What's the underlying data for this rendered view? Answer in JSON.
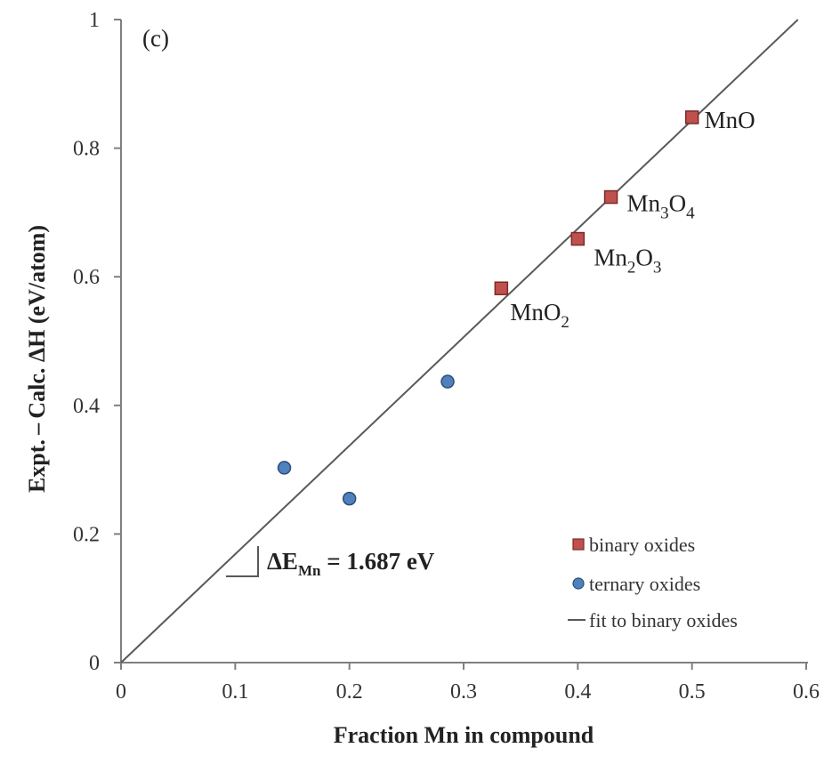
{
  "chart_data": {
    "type": "scatter",
    "panel_label": "(c)",
    "xlabel": "Fraction Mn in compound",
    "ylabel": "Expt. – Calc. ΔH (eV/atom)",
    "xlim": [
      0,
      0.6
    ],
    "ylim": [
      0,
      1
    ],
    "x_ticks": [
      0,
      0.1,
      0.2,
      0.3,
      0.4,
      0.5,
      0.6
    ],
    "x_tick_labels": [
      "0",
      "0.1",
      "0.2",
      "0.3",
      "0.4",
      "0.5",
      "0.6"
    ],
    "y_ticks": [
      0,
      0.2,
      0.4,
      0.6,
      0.8,
      1
    ],
    "y_tick_labels": [
      "0",
      "0.2",
      "0.4",
      "0.6",
      "0.8",
      "1"
    ],
    "grid": false,
    "legend_position": "bottom-right",
    "series": [
      {
        "name": "binary oxides",
        "marker": "square",
        "color": "#c0504d",
        "edge_color": "#7a2a28",
        "points": [
          {
            "x": 0.333,
            "y": 0.582,
            "label": {
              "base": "MnO",
              "sub": "2",
              "tail": ""
            }
          },
          {
            "x": 0.4,
            "y": 0.659,
            "label": {
              "base": "Mn",
              "sub": "2",
              "tail": "O",
              "sub2": "3"
            }
          },
          {
            "x": 0.429,
            "y": 0.724,
            "label": {
              "base": "Mn",
              "sub": "3",
              "tail": "O",
              "sub2": "4"
            }
          },
          {
            "x": 0.5,
            "y": 0.848,
            "label": {
              "base": "MnO",
              "sub": "",
              "tail": ""
            }
          }
        ]
      },
      {
        "name": "ternary oxides",
        "marker": "circle",
        "color": "#4f81bd",
        "edge_color": "#2c4d74",
        "points": [
          {
            "x": 0.143,
            "y": 0.303
          },
          {
            "x": 0.2,
            "y": 0.255
          },
          {
            "x": 0.286,
            "y": 0.437
          }
        ]
      },
      {
        "name": "fit to binary oxides",
        "type": "line",
        "color": "#595959",
        "slope": 1.687,
        "intercept": 0
      }
    ],
    "annotation": {
      "symbol": "ΔE",
      "subscript": "Mn",
      "value_text": " = 1.687 eV"
    }
  }
}
